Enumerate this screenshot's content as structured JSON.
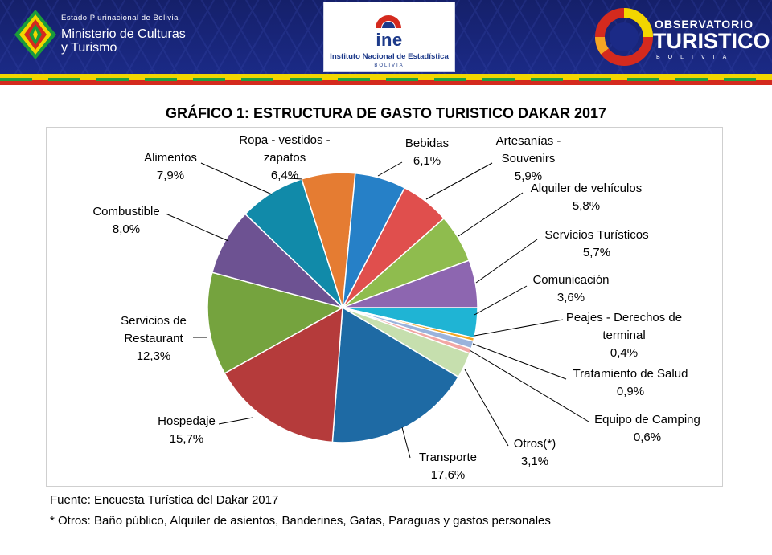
{
  "header": {
    "ministry_small": "Estado Plurinacional de Bolivia",
    "ministry_line1": "Ministerio de Culturas",
    "ministry_line2": "y Turismo",
    "ine_word": "ine",
    "ine_name": "Instituto Nacional de Estadística",
    "ine_country": "BOLIVIA",
    "obs_top": "OBSERVATORIO",
    "obs_main": "TURISTICO",
    "obs_country": "BOLIVIA"
  },
  "chart_data": {
    "type": "pie",
    "title": "GRÁFICO 1: ESTRUCTURA DE GASTO TURISTICO DAKAR 2017",
    "start_angle_deg": 0,
    "direction": "clockwise-from-3-oclock",
    "slices": [
      {
        "label_lines": [
          "Comunicación"
        ],
        "value_text": "3,6%",
        "value": 3.6,
        "color": "#1fb4d4"
      },
      {
        "label_lines": [
          "Peajes - Derechos de",
          "terminal"
        ],
        "value_text": "0,4%",
        "value": 0.4,
        "color": "#f5a623"
      },
      {
        "label_lines": [
          "Tratamiento de Salud"
        ],
        "value_text": "0,9%",
        "value": 0.9,
        "color": "#9ab3dc"
      },
      {
        "label_lines": [
          "Equipo de Camping"
        ],
        "value_text": "0,6%",
        "value": 0.6,
        "color": "#f2a7a4"
      },
      {
        "label_lines": [
          "Otros(*)"
        ],
        "value_text": "3,1%",
        "value": 3.1,
        "color": "#c6dfae"
      },
      {
        "label_lines": [
          "Transporte"
        ],
        "value_text": "17,6%",
        "value": 17.6,
        "color": "#1e6aa4"
      },
      {
        "label_lines": [
          "Hospedaje"
        ],
        "value_text": "15,7%",
        "value": 15.7,
        "color": "#b53b3b"
      },
      {
        "label_lines": [
          "Servicios de",
          "Restaurant"
        ],
        "value_text": "12,3%",
        "value": 12.3,
        "color": "#75a33e"
      },
      {
        "label_lines": [
          "Combustible"
        ],
        "value_text": "8,0%",
        "value": 8.0,
        "color": "#6d5292"
      },
      {
        "label_lines": [
          "Alimentos"
        ],
        "value_text": "7,9%",
        "value": 7.9,
        "color": "#118aa9"
      },
      {
        "label_lines": [
          "Ropa - vestidos -",
          "zapatos"
        ],
        "value_text": "6,4%",
        "value": 6.4,
        "color": "#e57c32"
      },
      {
        "label_lines": [
          "Bebidas"
        ],
        "value_text": "6,1%",
        "value": 6.1,
        "color": "#2680c7"
      },
      {
        "label_lines": [
          "Artesanías -",
          "Souvenirs"
        ],
        "value_text": "5,9%",
        "value": 5.9,
        "color": "#e04f4d"
      },
      {
        "label_lines": [
          "Alquiler de vehículos"
        ],
        "value_text": "5,8%",
        "value": 5.8,
        "color": "#8fbc4e"
      },
      {
        "label_lines": [
          "Servicios Turísticos"
        ],
        "value_text": "5,7%",
        "value": 5.7,
        "color": "#8d66b0"
      }
    ]
  },
  "footnotes": {
    "source": "Fuente: Encuesta Turística del Dakar 2017",
    "others": "* Otros: Baño público, Alquiler de asientos, Banderines, Gafas, Paraguas y gastos personales"
  }
}
